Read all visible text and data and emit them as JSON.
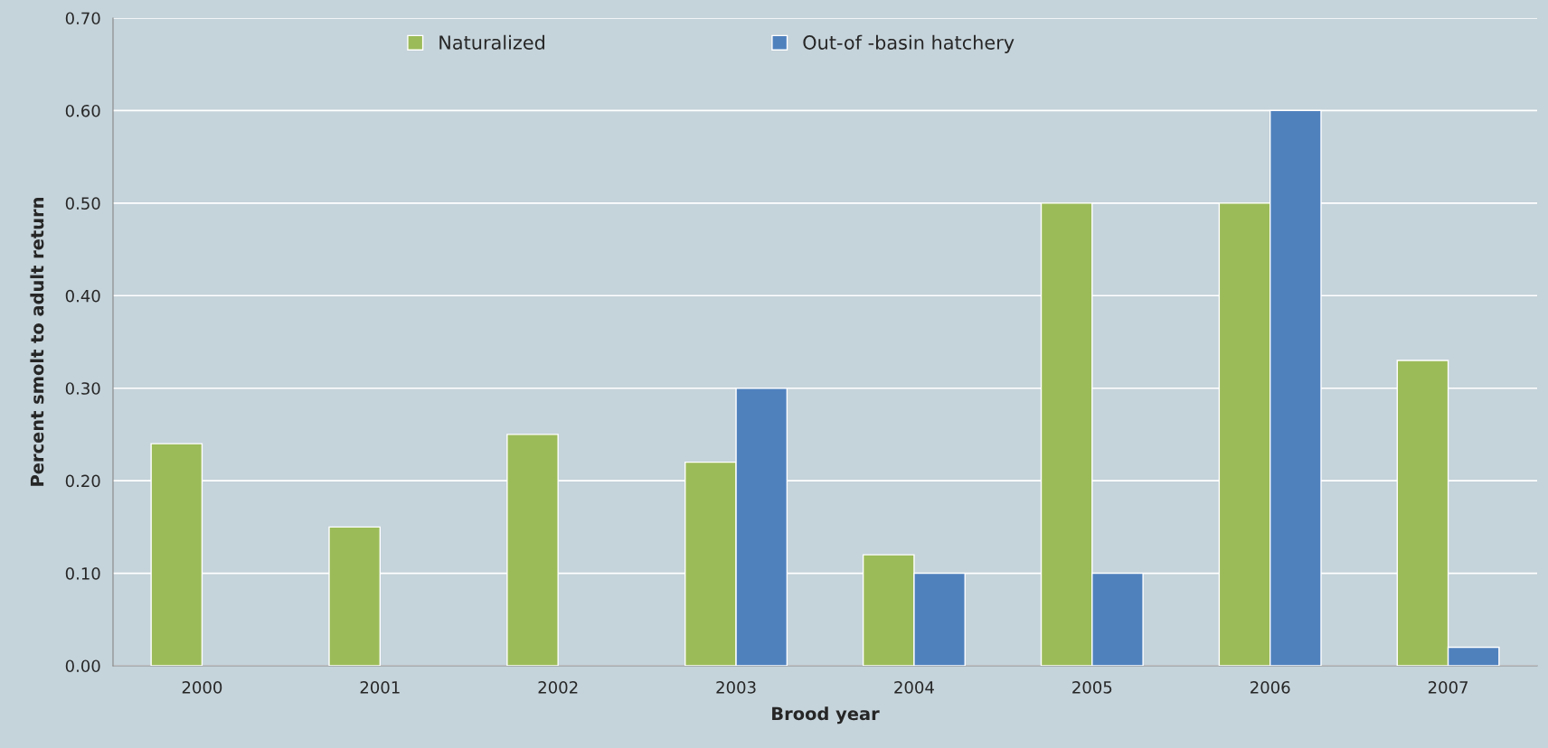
{
  "chart_data": {
    "type": "bar",
    "xlabel": "Brood year",
    "ylabel": "Percent smolt to adult return",
    "categories": [
      "2000",
      "2001",
      "2002",
      "2003",
      "2004",
      "2005",
      "2006",
      "2007"
    ],
    "series": [
      {
        "name": "Naturalized",
        "color": "#9bbb59",
        "values": [
          0.24,
          0.15,
          0.25,
          0.22,
          0.12,
          0.5,
          0.5,
          0.33
        ]
      },
      {
        "name": "Out-of -basin hatchery",
        "color": "#4f81bd",
        "values": [
          null,
          null,
          null,
          0.3,
          0.1,
          0.1,
          0.6,
          0.02
        ]
      }
    ],
    "ylim": [
      0,
      0.7
    ],
    "yticks": [
      {
        "value": 0,
        "label": "0.00"
      },
      {
        "value": 0.1,
        "label": "0.10"
      },
      {
        "value": 0.2,
        "label": "0.20"
      },
      {
        "value": 0.3,
        "label": "0.30"
      },
      {
        "value": 0.4,
        "label": "0.40"
      },
      {
        "value": 0.5,
        "label": "0.50"
      },
      {
        "value": 0.6,
        "label": "0.60"
      },
      {
        "value": 0.7,
        "label": "0.70"
      }
    ],
    "grid": "y",
    "legend": "top"
  }
}
